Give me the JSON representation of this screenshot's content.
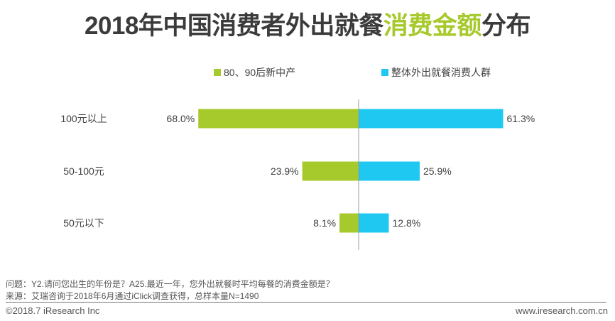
{
  "chart_data": {
    "type": "bar",
    "orientation": "horizontal-diverging",
    "title": {
      "part1": "2018年中国消费者外出就餐",
      "highlight": "消费金额",
      "part2": "分布"
    },
    "categories": [
      "100元以上",
      "50-100元",
      "50元以下"
    ],
    "series": [
      {
        "name": "80、90后新中产",
        "color": "#a6c92b",
        "direction": "left",
        "values": [
          68.0,
          23.9,
          8.1
        ]
      },
      {
        "name": "整体外出就餐消费人群",
        "color": "#1ec8f0",
        "direction": "right",
        "values": [
          61.3,
          25.9,
          12.8
        ]
      }
    ],
    "unit": "%",
    "legend": "top-center",
    "grid": false
  },
  "notes": {
    "question": "问题：Y2.请问您出生的年份是？A25.最近一年，您外出就餐时平均每餐的消费金额是？",
    "source": "来源：艾瑞咨询于2018年6月通过iClick调查获得，总样本量N=1490"
  },
  "footer": {
    "copyright": "©2018.7 iResearch Inc",
    "website": "www.iresearch.com.cn"
  }
}
